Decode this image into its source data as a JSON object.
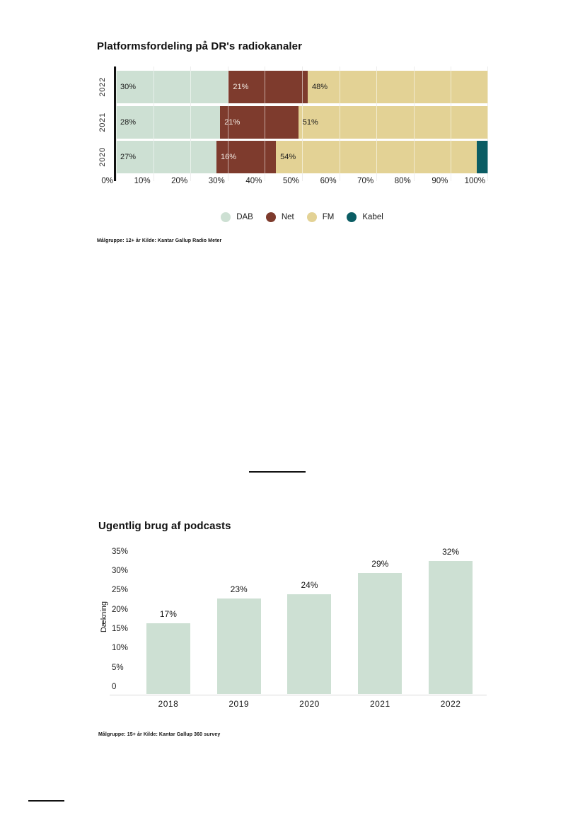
{
  "colors": {
    "dab": "#cde0d3",
    "net": "#7e3b2d",
    "fm": "#e3d295",
    "kabel": "#0b5d64",
    "dark_text": "#1a1a1a",
    "light_text": "#f2ebe3",
    "grid": "#d8d8d8",
    "baseline": "#d9d9d9"
  },
  "chart1": {
    "title": "Platformsfordeling på DR's radiokanaler",
    "x_ticks": [
      "0%",
      "10%",
      "20%",
      "30%",
      "40%",
      "50%",
      "60%",
      "70%",
      "80%",
      "90%",
      "100%"
    ],
    "rows": [
      {
        "year": "2022",
        "segments": [
          {
            "name": "DAB",
            "value": 30,
            "label": "30%",
            "color": "#cde0d3",
            "text": "#1a1a1a"
          },
          {
            "name": "Net",
            "value": 21,
            "label": "21%",
            "color": "#7e3b2d",
            "text": "#f2ebe3"
          },
          {
            "name": "FM",
            "value": 48,
            "label": "48%",
            "color": "#e3d295",
            "text": "#1a1a1a"
          }
        ]
      },
      {
        "year": "2021",
        "segments": [
          {
            "name": "DAB",
            "value": 28,
            "label": "28%",
            "color": "#cde0d3",
            "text": "#1a1a1a"
          },
          {
            "name": "Net",
            "value": 21,
            "label": "21%",
            "color": "#7e3b2d",
            "text": "#f2ebe3"
          },
          {
            "name": "FM",
            "value": 51,
            "label": "51%",
            "color": "#e3d295",
            "text": "#1a1a1a"
          }
        ]
      },
      {
        "year": "2020",
        "segments": [
          {
            "name": "DAB",
            "value": 27,
            "label": "27%",
            "color": "#cde0d3",
            "text": "#1a1a1a"
          },
          {
            "name": "Net",
            "value": 16,
            "label": "16%",
            "color": "#7e3b2d",
            "text": "#f2ebe3"
          },
          {
            "name": "FM",
            "value": 54,
            "label": "54%",
            "color": "#e3d295",
            "text": "#1a1a1a"
          },
          {
            "name": "Kabel",
            "value": 3,
            "label": "",
            "color": "#0b5d64",
            "text": "#f2ebe3"
          }
        ]
      }
    ],
    "legend": [
      {
        "label": "DAB",
        "color": "#cde0d3"
      },
      {
        "label": "Net",
        "color": "#7e3b2d"
      },
      {
        "label": "FM",
        "color": "#e3d295"
      },
      {
        "label": "Kabel",
        "color": "#0b5d64"
      }
    ],
    "footnote": "Målgruppe: 12+ år Kilde: Kantar Gallup Radio Meter"
  },
  "chart2": {
    "title": "Ugentlig brug af podcasts",
    "ylabel": "Dækning",
    "y_ticks": [
      {
        "label": "35%",
        "value": 35
      },
      {
        "label": "30%",
        "value": 30
      },
      {
        "label": "25%",
        "value": 25
      },
      {
        "label": "20%",
        "value": 20
      },
      {
        "label": "15%",
        "value": 15
      },
      {
        "label": "10%",
        "value": 10
      },
      {
        "label": "5%",
        "value": 5
      },
      {
        "label": "0",
        "value": 0
      }
    ],
    "categories": [
      "2018",
      "2019",
      "2020",
      "2021",
      "2022"
    ],
    "values": [
      17,
      23,
      24,
      29,
      32
    ],
    "value_labels": [
      "17%",
      "23%",
      "24%",
      "29%",
      "32%"
    ],
    "bar_color": "#cde0d3",
    "footnote": "Målgruppe: 15+ år Kilde: Kantar Gallup 360 survey"
  },
  "chart_data": [
    {
      "type": "bar",
      "orientation": "horizontal-stacked",
      "title": "Platformsfordeling på DR's radiokanaler",
      "categories": [
        "2022",
        "2021",
        "2020"
      ],
      "series": [
        {
          "name": "DAB",
          "values": [
            30,
            28,
            27
          ]
        },
        {
          "name": "Net",
          "values": [
            21,
            21,
            16
          ]
        },
        {
          "name": "FM",
          "values": [
            48,
            51,
            54
          ]
        },
        {
          "name": "Kabel",
          "values": [
            0,
            0,
            3
          ]
        }
      ],
      "xlabel": "",
      "ylabel": "",
      "xlim": [
        0,
        100
      ],
      "x_tick_labels": [
        "0%",
        "10%",
        "20%",
        "30%",
        "40%",
        "50%",
        "60%",
        "70%",
        "80%",
        "90%",
        "100%"
      ],
      "grid": "vertical",
      "legend_position": "bottom",
      "footnote": "Målgruppe: 12+ år Kilde: Kantar Gallup Radio Meter"
    },
    {
      "type": "bar",
      "orientation": "vertical",
      "title": "Ugentlig brug af podcasts",
      "categories": [
        "2018",
        "2019",
        "2020",
        "2021",
        "2022"
      ],
      "values": [
        17,
        23,
        24,
        29,
        32
      ],
      "data_labels": [
        "17%",
        "23%",
        "24%",
        "29%",
        "32%"
      ],
      "xlabel": "",
      "ylabel": "Dækning",
      "ylim": [
        0,
        35
      ],
      "y_tick_labels": [
        "0",
        "5%",
        "10%",
        "15%",
        "20%",
        "25%",
        "30%",
        "35%"
      ],
      "grid": "off",
      "footnote": "Målgruppe: 15+ år Kilde: Kantar Gallup 360 survey"
    }
  ]
}
